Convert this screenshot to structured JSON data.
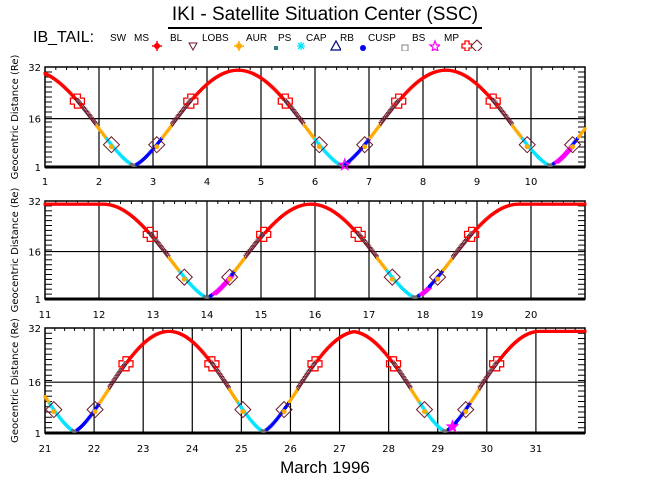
{
  "title": "IKI - Satellite Situation Center (SSC)",
  "legend_prefix": "IB_TAIL:",
  "legend": [
    {
      "label": "SW",
      "symbol": "none",
      "color": "#000000"
    },
    {
      "label": "MS",
      "symbol": "sun",
      "color": "#ff0000"
    },
    {
      "label": "BL",
      "symbol": "triangle-down",
      "color": "#6b1a2a"
    },
    {
      "label": "LOBS",
      "symbol": "sun",
      "color": "#ffaa00"
    },
    {
      "label": "AUR",
      "symbol": "square-small",
      "color": "#2a7f8f"
    },
    {
      "label": "PS",
      "symbol": "asterisk",
      "color": "#00e5ff"
    },
    {
      "label": "CAP",
      "symbol": "triangle-up",
      "color": "#000080"
    },
    {
      "label": "RB",
      "symbol": "dot",
      "color": "#0000ff"
    },
    {
      "label": "CUSP",
      "symbol": "square-open",
      "color": "#808080"
    },
    {
      "label": "BS",
      "symbol": "star",
      "color": "#ff00ff"
    },
    {
      "label": "MP",
      "symbol": "cross",
      "color": "#ff0000"
    },
    {
      "label": "",
      "symbol": "diamond",
      "color": "#6b1a2a"
    }
  ],
  "xlabel": "March    1996",
  "chart_data": [
    {
      "type": "scatter",
      "title": "IKI - Satellite Situation Center (SSC)",
      "ylabel": "Geocentric Distance (Re)",
      "yticks": [
        "1",
        "16",
        "32"
      ],
      "ylim": [
        1,
        32
      ],
      "xlim": [
        1,
        11
      ],
      "xticks": [
        "1",
        "2",
        "3",
        "4",
        "5",
        "6",
        "7",
        "8",
        "9",
        "10"
      ],
      "grid": true,
      "perigees": [
        2.65,
        6.5,
        10.35
      ],
      "apogees": [
        4.6,
        8.4
      ],
      "msp_pink_segments": [
        [
          10.45,
          10.75
        ]
      ],
      "bs_markers": [
        6.55
      ]
    },
    {
      "type": "scatter",
      "ylabel": "Geocentric Distance (Re)",
      "yticks": [
        "1",
        "16",
        "32"
      ],
      "ylim": [
        1,
        32
      ],
      "xlim": [
        11,
        21
      ],
      "xticks": [
        "11",
        "12",
        "13",
        "14",
        "15",
        "16",
        "17",
        "18",
        "19",
        "20"
      ],
      "grid": true,
      "perigees": [
        14.0,
        17.85
      ],
      "apogees": [
        12.1,
        15.95,
        19.8
      ],
      "msp_pink_segments": [
        [
          14.1,
          14.45
        ],
        [
          17.95,
          18.1
        ]
      ],
      "bs_markers": []
    },
    {
      "type": "scatter",
      "ylabel": "Geocentric Distance (Re)",
      "yticks": [
        "1",
        "16",
        "32"
      ],
      "ylim": [
        1,
        32
      ],
      "xlim": [
        21,
        32
      ],
      "xticks": [
        "21",
        "22",
        "23",
        "24",
        "25",
        "26",
        "27",
        "28",
        "29",
        "30",
        "31"
      ],
      "grid": true,
      "perigees": [
        21.6,
        25.45,
        29.15
      ],
      "apogees": [
        23.5,
        27.35,
        31.1
      ],
      "msp_pink_segments": [
        [
          29.25,
          29.35
        ]
      ],
      "bs_markers": [
        29.3
      ]
    }
  ]
}
